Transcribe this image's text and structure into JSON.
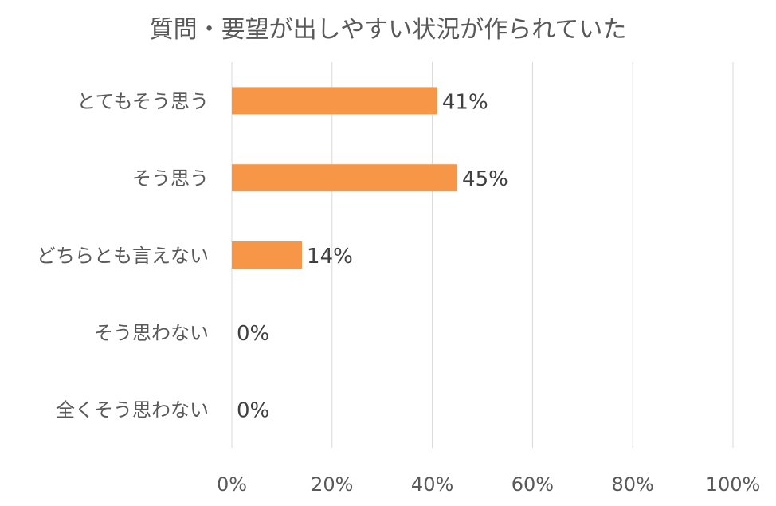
{
  "chart_data": {
    "type": "bar",
    "orientation": "horizontal",
    "title": "質問・要望が出しやすい状況が作られていた",
    "categories": [
      "とてもそう思う",
      "そう思う",
      "どちらとも言えない",
      "そう思わない",
      "全くそう思わない"
    ],
    "values": [
      41,
      45,
      14,
      0,
      0
    ],
    "data_labels": [
      "41%",
      "45%",
      "14%",
      "0%",
      "0%"
    ],
    "xlim": [
      0,
      100
    ],
    "x_ticks": [
      "0%",
      "20%",
      "40%",
      "60%",
      "80%",
      "100%"
    ],
    "grid": true,
    "bar_color": "#F79646",
    "grid_color": "#D9D9D9"
  }
}
